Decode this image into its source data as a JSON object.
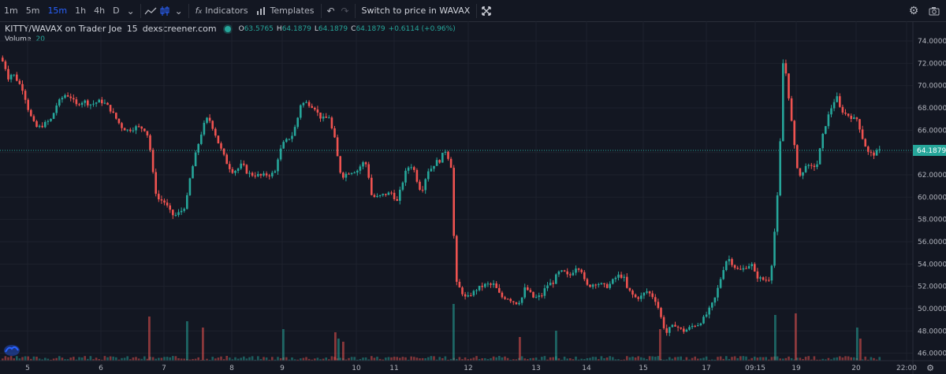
{
  "toolbar": {
    "intervals": [
      "1m",
      "5m",
      "15m",
      "1h",
      "4h",
      "D"
    ],
    "active_interval": "15m",
    "indicators_label": "Indicators",
    "templates_label": "Templates",
    "switch_label": "Switch to price in WAVAX"
  },
  "legend": {
    "symbol": "KITTY/WAVAX on Trader Joe",
    "interval": "15",
    "source": "dexscreener.com",
    "open_label": "O",
    "open": "63.5765",
    "high_label": "H",
    "high": "64.1879",
    "low_label": "L",
    "low": "64.1879",
    "close_label": "C",
    "close": "64.1879",
    "change": "+0.6114 (+0.96%)",
    "volume_label": "Volume",
    "volume_value": "20"
  },
  "colors": {
    "up": "#26a69a",
    "down": "#ef5350",
    "background": "#131722",
    "grid": "#1e222d",
    "text": "#b2b5be"
  },
  "chart_data": {
    "type": "candlestick",
    "y_ticks": [
      "46.0000",
      "48.0000",
      "50.0000",
      "52.0000",
      "54.0000",
      "56.0000",
      "58.0000",
      "60.0000",
      "62.0000",
      "64.0000",
      "66.0000",
      "68.0000",
      "70.0000",
      "72.0000",
      "74.0000"
    ],
    "ylim": [
      45,
      75.5
    ],
    "current_price": "64.1879",
    "x_ticks": [
      "5",
      "6",
      "7",
      "8",
      "9",
      "10",
      "11",
      "12",
      "13",
      "14",
      "15",
      "17",
      "09:15",
      "19",
      "20",
      "22:00"
    ],
    "price_path": [
      [
        0,
        72.5
      ],
      [
        6,
        71.5
      ],
      [
        10,
        70.5
      ],
      [
        14,
        71.2
      ],
      [
        22,
        70.3
      ],
      [
        28,
        69.6
      ],
      [
        34,
        68.0
      ],
      [
        40,
        66.8
      ],
      [
        46,
        66.2
      ],
      [
        52,
        66.4
      ],
      [
        58,
        66.7
      ],
      [
        64,
        67.0
      ],
      [
        70,
        68.2
      ],
      [
        76,
        68.8
      ],
      [
        82,
        69.2
      ],
      [
        88,
        69.0
      ],
      [
        92,
        68.6
      ],
      [
        96,
        68.2
      ],
      [
        100,
        68.5
      ],
      [
        106,
        68.6
      ],
      [
        112,
        68.3
      ],
      [
        118,
        68.4
      ],
      [
        124,
        68.6
      ],
      [
        130,
        68.5
      ],
      [
        136,
        68.1
      ],
      [
        142,
        67.5
      ],
      [
        148,
        66.8
      ],
      [
        154,
        66.2
      ],
      [
        160,
        66.0
      ],
      [
        166,
        66.1
      ],
      [
        172,
        66.3
      ],
      [
        178,
        66.2
      ],
      [
        184,
        66.0
      ],
      [
        188,
        65.0
      ],
      [
        192,
        62.5
      ],
      [
        196,
        60.5
      ],
      [
        200,
        59.8
      ],
      [
        204,
        59.7
      ],
      [
        208,
        59.5
      ],
      [
        212,
        59.0
      ],
      [
        216,
        58.5
      ],
      [
        220,
        58.3
      ],
      [
        226,
        58.6
      ],
      [
        232,
        59.0
      ],
      [
        236,
        60.0
      ],
      [
        240,
        61.8
      ],
      [
        244,
        63.0
      ],
      [
        248,
        64.2
      ],
      [
        252,
        65.2
      ],
      [
        256,
        66.2
      ],
      [
        260,
        67.0
      ],
      [
        264,
        67.0
      ],
      [
        270,
        66.0
      ],
      [
        276,
        64.8
      ],
      [
        282,
        63.8
      ],
      [
        288,
        62.8
      ],
      [
        294,
        62.3
      ],
      [
        300,
        62.5
      ],
      [
        306,
        63.0
      ],
      [
        312,
        62.2
      ],
      [
        318,
        62.0
      ],
      [
        324,
        62.0
      ],
      [
        330,
        61.9
      ],
      [
        336,
        62.0
      ],
      [
        342,
        62.0
      ],
      [
        348,
        62.3
      ],
      [
        352,
        63.8
      ],
      [
        358,
        64.8
      ],
      [
        364,
        65.2
      ],
      [
        370,
        65.6
      ],
      [
        376,
        67.0
      ],
      [
        380,
        68.3
      ],
      [
        386,
        68.5
      ],
      [
        392,
        68.3
      ],
      [
        398,
        68.0
      ],
      [
        404,
        67.2
      ],
      [
        410,
        67.0
      ],
      [
        416,
        67.2
      ],
      [
        420,
        66.0
      ],
      [
        424,
        65.0
      ],
      [
        428,
        63.0
      ],
      [
        432,
        61.8
      ],
      [
        436,
        62.0
      ],
      [
        440,
        62.2
      ],
      [
        446,
        62.3
      ],
      [
        452,
        62.4
      ],
      [
        458,
        63.0
      ],
      [
        462,
        63.2
      ],
      [
        466,
        62.0
      ],
      [
        470,
        60.2
      ],
      [
        474,
        60.0
      ],
      [
        478,
        60.0
      ],
      [
        484,
        60.2
      ],
      [
        490,
        60.3
      ],
      [
        496,
        60.4
      ],
      [
        502,
        59.5
      ],
      [
        506,
        60.5
      ],
      [
        510,
        61.5
      ],
      [
        514,
        62.4
      ],
      [
        518,
        62.8
      ],
      [
        522,
        62.8
      ],
      [
        526,
        62.0
      ],
      [
        530,
        60.8
      ],
      [
        536,
        60.8
      ],
      [
        540,
        62.3
      ],
      [
        546,
        62.6
      ],
      [
        552,
        63.2
      ],
      [
        556,
        63.2
      ],
      [
        560,
        63.8
      ],
      [
        564,
        64.2
      ],
      [
        568,
        63.4
      ],
      [
        572,
        62.5
      ],
      [
        576,
        52.5
      ],
      [
        580,
        52.0
      ],
      [
        584,
        51.6
      ],
      [
        588,
        51.0
      ],
      [
        592,
        51.0
      ],
      [
        596,
        51.3
      ],
      [
        600,
        51.5
      ],
      [
        604,
        51.8
      ],
      [
        610,
        52.0
      ],
      [
        616,
        52.2
      ],
      [
        622,
        52.1
      ],
      [
        626,
        52.2
      ],
      [
        630,
        51.5
      ],
      [
        636,
        51.0
      ],
      [
        642,
        51.0
      ],
      [
        648,
        50.7
      ],
      [
        654,
        50.5
      ],
      [
        660,
        50.8
      ],
      [
        664,
        51.8
      ],
      [
        670,
        51.6
      ],
      [
        674,
        51.0
      ],
      [
        680,
        51.0
      ],
      [
        686,
        51.2
      ],
      [
        690,
        51.8
      ],
      [
        694,
        52.2
      ],
      [
        700,
        52.3
      ],
      [
        706,
        53.2
      ],
      [
        712,
        53.3
      ],
      [
        716,
        53.2
      ],
      [
        720,
        52.8
      ],
      [
        726,
        53.4
      ],
      [
        730,
        53.8
      ],
      [
        736,
        53.5
      ],
      [
        740,
        52.5
      ],
      [
        744,
        52.0
      ],
      [
        748,
        52.1
      ],
      [
        754,
        52.3
      ],
      [
        760,
        52.2
      ],
      [
        766,
        52.0
      ],
      [
        770,
        52.0
      ],
      [
        776,
        52.5
      ],
      [
        780,
        52.8
      ],
      [
        784,
        53.0
      ],
      [
        790,
        52.8
      ],
      [
        794,
        51.8
      ],
      [
        798,
        51.5
      ],
      [
        804,
        51.0
      ],
      [
        810,
        51.0
      ],
      [
        814,
        51.2
      ],
      [
        818,
        51.6
      ],
      [
        822,
        51.4
      ],
      [
        828,
        51.0
      ],
      [
        832,
        50.5
      ],
      [
        836,
        49.5
      ],
      [
        840,
        48.5
      ],
      [
        844,
        47.8
      ],
      [
        848,
        48.2
      ],
      [
        852,
        48.4
      ],
      [
        856,
        48.6
      ],
      [
        860,
        48.2
      ],
      [
        866,
        48.0
      ],
      [
        872,
        48.2
      ],
      [
        878,
        48.5
      ],
      [
        884,
        48.6
      ],
      [
        890,
        49.0
      ],
      [
        896,
        49.6
      ],
      [
        902,
        50.4
      ],
      [
        906,
        51.0
      ],
      [
        910,
        52.0
      ],
      [
        914,
        53.0
      ],
      [
        918,
        54.0
      ],
      [
        922,
        54.6
      ],
      [
        926,
        54.2
      ],
      [
        930,
        53.8
      ],
      [
        936,
        53.4
      ],
      [
        940,
        53.5
      ],
      [
        946,
        53.8
      ],
      [
        952,
        54.0
      ],
      [
        956,
        53.2
      ],
      [
        960,
        52.8
      ],
      [
        966,
        52.6
      ],
      [
        972,
        52.6
      ],
      [
        976,
        52.7
      ],
      [
        980,
        56.0
      ],
      [
        984,
        59.0
      ],
      [
        988,
        64.0
      ],
      [
        990,
        68.5
      ],
      [
        992,
        72.0
      ],
      [
        996,
        71.0
      ],
      [
        1000,
        68.5
      ],
      [
        1004,
        66.0
      ],
      [
        1008,
        63.5
      ],
      [
        1012,
        62.0
      ],
      [
        1016,
        61.8
      ],
      [
        1020,
        63.0
      ],
      [
        1026,
        62.6
      ],
      [
        1032,
        62.8
      ],
      [
        1036,
        63.0
      ],
      [
        1040,
        64.8
      ],
      [
        1044,
        66.0
      ],
      [
        1048,
        67.0
      ],
      [
        1052,
        67.8
      ],
      [
        1056,
        68.5
      ],
      [
        1060,
        69.0
      ],
      [
        1064,
        68.0
      ],
      [
        1070,
        67.5
      ],
      [
        1076,
        67.3
      ],
      [
        1082,
        67.0
      ],
      [
        1086,
        67.0
      ],
      [
        1090,
        66.0
      ],
      [
        1094,
        65.0
      ],
      [
        1100,
        64.0
      ],
      [
        1106,
        63.8
      ],
      [
        1112,
        64.1
      ],
      [
        1116,
        64.2
      ]
    ],
    "volume_spikes": [
      [
        188,
        56
      ],
      [
        236,
        50
      ],
      [
        256,
        42
      ],
      [
        358,
        40
      ],
      [
        424,
        36
      ],
      [
        428,
        28
      ],
      [
        434,
        24
      ],
      [
        574,
        72
      ],
      [
        658,
        30
      ],
      [
        704,
        38
      ],
      [
        836,
        40
      ],
      [
        982,
        58
      ],
      [
        1008,
        60
      ],
      [
        1086,
        42
      ],
      [
        1090,
        28
      ]
    ]
  }
}
